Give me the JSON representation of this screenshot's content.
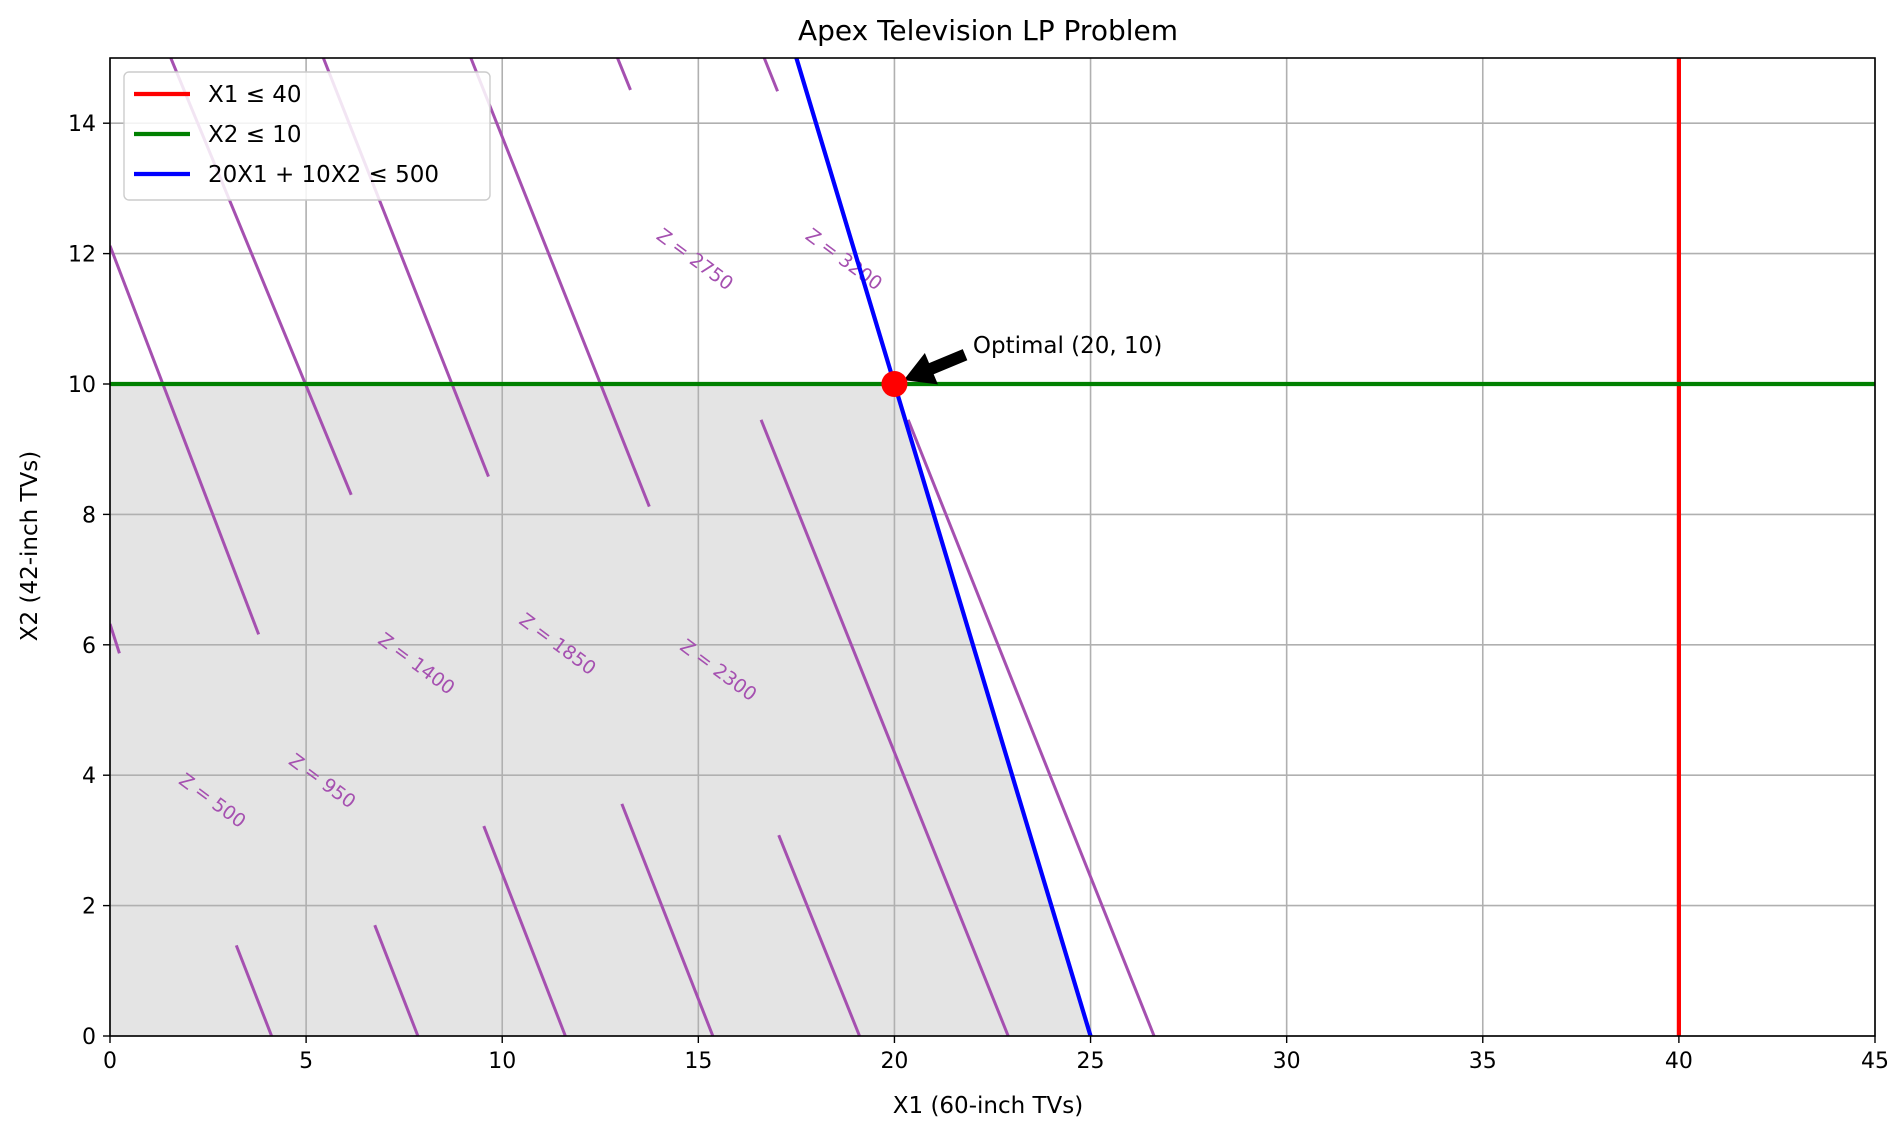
{
  "chart_data": {
    "type": "line",
    "title": "Apex Television LP Problem",
    "xlabel": "X1 (60-inch TVs)",
    "ylabel": "X2 (42-inch TVs)",
    "xlim": [
      0,
      45
    ],
    "ylim": [
      0,
      15
    ],
    "xticks": [
      0,
      5,
      10,
      15,
      20,
      25,
      30,
      35,
      40,
      45
    ],
    "yticks": [
      0,
      2,
      4,
      6,
      8,
      10,
      12,
      14
    ],
    "grid": true,
    "legend_position": "top-left",
    "feasible_region": {
      "vertices": [
        [
          0,
          0
        ],
        [
          25,
          0
        ],
        [
          20,
          10
        ],
        [
          0,
          10
        ]
      ],
      "color": "#e4e4e4"
    },
    "series": [
      {
        "name": "X1 ≤ 40",
        "kind": "vertical",
        "x": 40,
        "color": "#ff0000"
      },
      {
        "name": "X2 ≤ 10",
        "kind": "horizontal",
        "y": 10,
        "color": "#008000"
      },
      {
        "name": "20X1 + 10X2 ≤ 500",
        "kind": "segment",
        "points": [
          [
            25,
            0
          ],
          [
            17.5,
            15
          ]
        ],
        "color": "#0000ff"
      }
    ],
    "objective_contours": {
      "color": "#a550b0",
      "coef_x1": 30,
      "coef_x2": 12,
      "levels": [
        {
          "label": "Z = 500",
          "value": 500,
          "label_at": [
            2.6,
            3.6
          ]
        },
        {
          "label": "Z = 950",
          "value": 950,
          "label_at": [
            5.4,
            3.9
          ]
        },
        {
          "label": "Z = 1400",
          "value": 1400,
          "label_at": [
            7.8,
            5.7
          ]
        },
        {
          "label": "Z = 1850",
          "value": 1850,
          "label_at": [
            11.4,
            6.0
          ]
        },
        {
          "label": "Z = 2300",
          "value": 2300,
          "label_at": [
            15.5,
            5.6
          ]
        },
        {
          "label": "Z = 2750",
          "value": 2750,
          "label_at": [
            14.9,
            11.9
          ]
        },
        {
          "label": "Z = 3200",
          "value": 3200,
          "label_at": [
            18.7,
            11.9
          ]
        }
      ],
      "segments": [
        [
          [
            0,
            12.12
          ],
          [
            3.79,
            6.16
          ]
        ],
        [
          [
            0,
            6.32
          ],
          [
            0.24,
            5.87
          ]
        ],
        [
          [
            1.55,
            15
          ],
          [
            6.15,
            8.3
          ]
        ],
        [
          [
            3.22,
            1.39
          ],
          [
            4.12,
            0
          ]
        ],
        [
          [
            5.44,
            15
          ],
          [
            9.65,
            8.58
          ]
        ],
        [
          [
            6.75,
            1.7
          ],
          [
            7.85,
            0
          ]
        ],
        [
          [
            9.2,
            15
          ],
          [
            13.75,
            8.12
          ]
        ],
        [
          [
            9.53,
            3.22
          ],
          [
            11.61,
            0
          ]
        ],
        [
          [
            12.94,
            15
          ],
          [
            13.27,
            14.51
          ]
        ],
        [
          [
            13.05,
            3.56
          ],
          [
            15.37,
            0
          ]
        ],
        [
          [
            16.68,
            15
          ],
          [
            17.02,
            14.49
          ]
        ],
        [
          [
            16.6,
            9.45
          ],
          [
            22.9,
            0
          ]
        ],
        [
          [
            17.05,
            3.08
          ],
          [
            19.11,
            0
          ]
        ],
        [
          [
            20.35,
            9.45
          ],
          [
            26.62,
            0
          ]
        ]
      ]
    },
    "optimal_point": {
      "label": "Optimal (20, 10)",
      "x": 20,
      "y": 10,
      "text_at": [
        22,
        10.6
      ],
      "arrow_tail": [
        21.8,
        10.45
      ],
      "color": "#ff0000"
    }
  }
}
